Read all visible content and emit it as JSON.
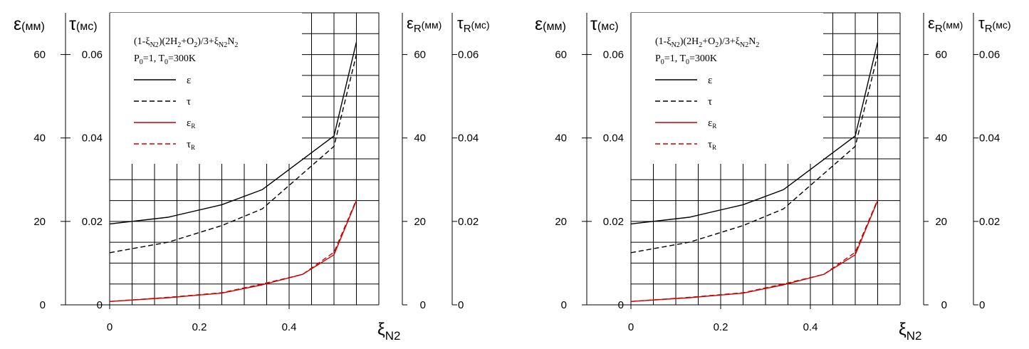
{
  "chart_data": [
    {
      "type": "line",
      "legend": {
        "formula": {
          "a": "(1-ξ",
          "a_sub": "N2",
          "b": ")(2H",
          "b_sub": "2",
          "c": "+O",
          "c_sub": "2",
          "d": ")/3+ξ",
          "d_sub": "N2",
          "e": "N",
          "e_sub": "2"
        },
        "conditions": {
          "a": "P",
          "a_sub": "0",
          "b": "=1, T",
          "b_sub": "0",
          "c": "=300K"
        },
        "entries": [
          {
            "label": "ε",
            "sub": "",
            "color": "#000000",
            "dash": false
          },
          {
            "label": "τ",
            "sub": "",
            "color": "#000000",
            "dash": true
          },
          {
            "label": "ε",
            "sub": "R",
            "color": "#cc0000",
            "dash": false
          },
          {
            "label": "τ",
            "sub": "R",
            "color": "#cc0000",
            "dash": true
          }
        ]
      },
      "axes": {
        "left_eps": {
          "sym": "ε",
          "unit": "(мм)",
          "ticks": [
            "60",
            "40",
            "20",
            "0"
          ]
        },
        "left_tau": {
          "sym": "τ",
          "unit": "(мс)",
          "ticks": [
            "0.06",
            "0.04",
            "0.02",
            "0"
          ]
        },
        "right_epsR": {
          "sym": "ε",
          "sub": "R",
          "unit": "(мм)",
          "ticks": [
            "60",
            "40",
            "20",
            "0"
          ]
        },
        "right_tauR": {
          "sym": "τ",
          "sub": "R",
          "unit": "(мс)",
          "ticks": [
            "0.06",
            "0.04",
            "0.02",
            "0"
          ]
        },
        "x": {
          "sym": "ξ",
          "sub": "N2",
          "ticks": [
            "0",
            "0.2",
            "0.4"
          ],
          "range": [
            0,
            0.6
          ]
        },
        "y_range": [
          0,
          70
        ]
      },
      "series": [
        {
          "name": "ε",
          "x": [
            0,
            0.13,
            0.25,
            0.34,
            0.5,
            0.55
          ],
          "y": [
            19.4,
            21,
            24,
            27.6,
            40.5,
            63
          ]
        },
        {
          "name": "τ",
          "x": [
            0,
            0.13,
            0.25,
            0.34,
            0.5,
            0.55
          ],
          "y": [
            12.5,
            15,
            19,
            23,
            38,
            60
          ]
        },
        {
          "name": "εR",
          "x": [
            0,
            0.13,
            0.25,
            0.34,
            0.43,
            0.5,
            0.55
          ],
          "y": [
            0.8,
            1.7,
            2.8,
            4.8,
            7.3,
            12,
            25
          ]
        },
        {
          "name": "τR",
          "x": [
            0,
            0.13,
            0.25,
            0.34,
            0.43,
            0.5,
            0.55
          ],
          "y": [
            0.8,
            1.8,
            2.9,
            5,
            7.3,
            12.6,
            25.2
          ]
        }
      ],
      "grid": true
    },
    {
      "type": "line",
      "legend": {
        "formula": {
          "a": "(1-ξ",
          "a_sub": "N2",
          "b": ")(2H",
          "b_sub": "2",
          "c": "+O",
          "c_sub": "2",
          "d": ")/3+ξ",
          "d_sub": "N2",
          "e": "N",
          "e_sub": "2"
        },
        "conditions": {
          "a": "P",
          "a_sub": "0",
          "b": "=1, T",
          "b_sub": "0",
          "c": "=300K"
        },
        "entries": [
          {
            "label": "ε",
            "sub": "",
            "color": "#000000",
            "dash": false
          },
          {
            "label": "τ",
            "sub": "",
            "color": "#000000",
            "dash": true
          },
          {
            "label": "ε",
            "sub": "R",
            "color": "#cc0000",
            "dash": false
          },
          {
            "label": "τ",
            "sub": "R",
            "color": "#cc0000",
            "dash": true
          }
        ]
      },
      "axes": {
        "left_eps": {
          "sym": "ε",
          "unit": "(мм)",
          "ticks": [
            "60",
            "40",
            "20",
            "0"
          ]
        },
        "left_tau": {
          "sym": "τ",
          "unit": "(мс)",
          "ticks": [
            "0.06",
            "0.04",
            "0.02",
            "0"
          ]
        },
        "right_epsR": {
          "sym": "ε",
          "sub": "R",
          "unit": "(мм)",
          "ticks": [
            "60",
            "40",
            "20",
            "0"
          ]
        },
        "right_tauR": {
          "sym": "τ",
          "sub": "R",
          "unit": "(мс)",
          "ticks": [
            "0.06",
            "0.04",
            "0.02",
            "0"
          ]
        },
        "x": {
          "sym": "ξ",
          "sub": "N2",
          "ticks": [
            "0",
            "0.2",
            "0.4"
          ],
          "range": [
            0,
            0.6
          ]
        },
        "y_range": [
          0,
          70
        ]
      },
      "series": [
        {
          "name": "ε",
          "x": [
            0,
            0.13,
            0.25,
            0.34,
            0.5,
            0.55
          ],
          "y": [
            19.4,
            21,
            24,
            27.6,
            40.5,
            63
          ]
        },
        {
          "name": "τ",
          "x": [
            0,
            0.13,
            0.25,
            0.34,
            0.5,
            0.55
          ],
          "y": [
            12.5,
            15,
            19,
            23,
            38,
            60
          ]
        },
        {
          "name": "εR",
          "x": [
            0,
            0.13,
            0.25,
            0.34,
            0.43,
            0.5,
            0.55
          ],
          "y": [
            0.8,
            1.7,
            2.8,
            4.8,
            7.3,
            12,
            25
          ]
        },
        {
          "name": "τR",
          "x": [
            0,
            0.13,
            0.25,
            0.34,
            0.43,
            0.5,
            0.55
          ],
          "y": [
            0.8,
            1.8,
            2.9,
            5,
            7.3,
            12.6,
            25.2
          ]
        }
      ],
      "grid": true
    }
  ]
}
